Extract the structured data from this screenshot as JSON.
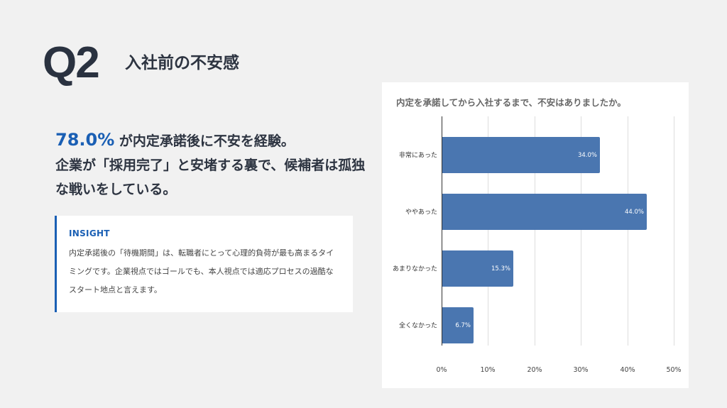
{
  "header": {
    "question_number": "Q2",
    "title": "入社前の不安感"
  },
  "headline": {
    "highlight": "78.0%",
    "line1_rest": " が内定承諾後に不安を経験。",
    "line2": "企業が「採用完了」と安堵する裏で、候補者は孤独な戦いをしている。"
  },
  "insight": {
    "label": "INSIGHT",
    "body": "内定承諾後の「待機期間」は、転職者にとって心理的負荷が最も高まるタイミングです。企業視点ではゴールでも、本人視点では適応プロセスの過酷なスタート地点と言えます。"
  },
  "colors": {
    "accent": "#1a5fb4",
    "bar": "#4a76b0",
    "background": "#f1f1f1",
    "text_dark": "#2d3441"
  },
  "chart_data": {
    "type": "bar",
    "orientation": "horizontal",
    "title": "内定を承諾してから入社するまで、不安はありましたか。",
    "categories": [
      "非常にあった",
      "ややあった",
      "あまりなかった",
      "全くなかった"
    ],
    "values": [
      34.0,
      44.0,
      15.3,
      6.7
    ],
    "value_labels": [
      "34.0%",
      "44.0%",
      "15.3%",
      "6.7%"
    ],
    "xlabel": "",
    "ylabel": "",
    "xlim": [
      0,
      50
    ],
    "x_ticks": [
      "0%",
      "10%",
      "20%",
      "30%",
      "40%",
      "50%"
    ],
    "grid": true,
    "legend": "none"
  }
}
